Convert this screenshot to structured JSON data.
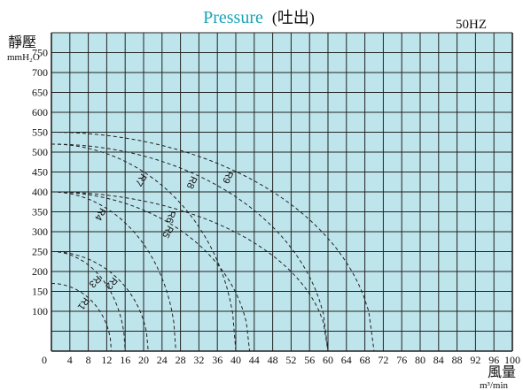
{
  "header": {
    "title_en": "Pressure",
    "title_cn": "(吐出)",
    "frequency": "50HZ"
  },
  "y_axis": {
    "label_cn": "靜壓",
    "unit": "mmH₂O",
    "ticks": [
      "100",
      "150",
      "200",
      "250",
      "300",
      "350",
      "400",
      "450",
      "500",
      "550",
      "600",
      "650",
      "700",
      "750"
    ]
  },
  "x_axis": {
    "label_cn": "風量",
    "unit": "m³/min",
    "origin_label": "0",
    "ticks": [
      "4",
      "8",
      "12",
      "16",
      "20",
      "24",
      "28",
      "32",
      "36",
      "40",
      "44",
      "48",
      "52",
      "56",
      "60",
      "64",
      "68",
      "72",
      "76",
      "80",
      "84",
      "88",
      "92",
      "96",
      "100"
    ]
  },
  "colors": {
    "grid_fill": "#bfe5ec",
    "grid_line": "#222222",
    "curve": "#222222",
    "title": "#1aa3b8"
  },
  "chart_data": {
    "type": "line",
    "title": "Pressure (吐出)",
    "xlabel": "風量 m³/min",
    "ylabel": "靜壓 mmH₂O",
    "xlim": [
      0,
      100
    ],
    "ylim": [
      0,
      800
    ],
    "grid": true,
    "series": [
      {
        "name": "R1",
        "max_pressure": 170,
        "max_flow": 13
      },
      {
        "name": "R2",
        "max_pressure": 250,
        "max_flow": 21
      },
      {
        "name": "R3",
        "max_pressure": 250,
        "max_flow": 16
      },
      {
        "name": "R4",
        "max_pressure": 400,
        "max_flow": 27
      },
      {
        "name": "R5",
        "max_pressure": 400,
        "max_flow": 43
      },
      {
        "name": "R6",
        "max_pressure": 400,
        "max_flow": 60
      },
      {
        "name": "R7",
        "max_pressure": 520,
        "max_flow": 40
      },
      {
        "name": "R8",
        "max_pressure": 520,
        "max_flow": 60
      },
      {
        "name": "R9",
        "max_pressure": 550,
        "max_flow": 70
      }
    ]
  }
}
